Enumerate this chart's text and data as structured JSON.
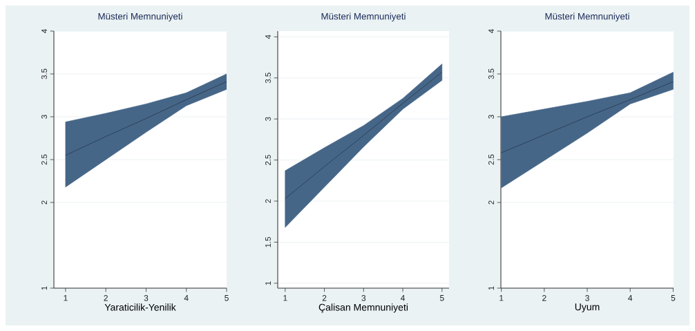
{
  "chart_data": [
    {
      "type": "line",
      "title": "Müsteri Memnuniyeti",
      "xlabel": "Yaraticilik-Yenilik",
      "x": [
        1,
        2,
        3,
        4,
        5
      ],
      "xlim": [
        0.71,
        5
      ],
      "xticks": [
        1,
        2,
        3,
        4,
        5
      ],
      "ylim": [
        1,
        4
      ],
      "yticks": [
        1,
        2,
        2.5,
        3,
        3.5,
        4
      ],
      "grid": "y",
      "series": [
        {
          "color": "#27394c",
          "values": [
            2.55,
            2.77,
            2.98,
            3.2,
            3.41
          ],
          "lower": [
            2.18,
            2.5,
            2.82,
            3.13,
            3.32
          ],
          "upper": [
            2.94,
            3.04,
            3.15,
            3.28,
            3.5
          ]
        }
      ]
    },
    {
      "type": "line",
      "title": "Müsteri Memnuniyeti",
      "xlabel": "Çalisan Memnuniyeti",
      "x": [
        1,
        2,
        3,
        4,
        5
      ],
      "xlim": [
        0.81,
        5.18
      ],
      "xticks": [
        1,
        2,
        3,
        4,
        5
      ],
      "ylim": [
        0.94,
        4.07
      ],
      "yticks": [
        1,
        1.5,
        2,
        2.5,
        3,
        3.5,
        4
      ],
      "grid": "y",
      "series": [
        {
          "color": "#27394c",
          "values": [
            2.03,
            2.42,
            2.8,
            3.19,
            3.57
          ],
          "lower": [
            1.68,
            2.17,
            2.66,
            3.12,
            3.47
          ],
          "upper": [
            2.37,
            2.65,
            2.92,
            3.25,
            3.67
          ]
        }
      ]
    },
    {
      "type": "line",
      "title": "Müsteri Memnuniyeti",
      "xlabel": "Uyum",
      "x": [
        1,
        2,
        3,
        4,
        5
      ],
      "xlim": [
        0.99,
        5.01
      ],
      "xticks": [
        1,
        2,
        3,
        4,
        5
      ],
      "ylim": [
        1,
        4
      ],
      "yticks": [
        1,
        2,
        2.5,
        3,
        3.5,
        4
      ],
      "grid": "y",
      "series": [
        {
          "color": "#27394c",
          "values": [
            2.58,
            2.79,
            3.0,
            3.2,
            3.41
          ],
          "lower": [
            2.17,
            2.49,
            2.81,
            3.15,
            3.32
          ],
          "upper": [
            3.0,
            3.09,
            3.18,
            3.28,
            3.52
          ]
        }
      ]
    }
  ]
}
